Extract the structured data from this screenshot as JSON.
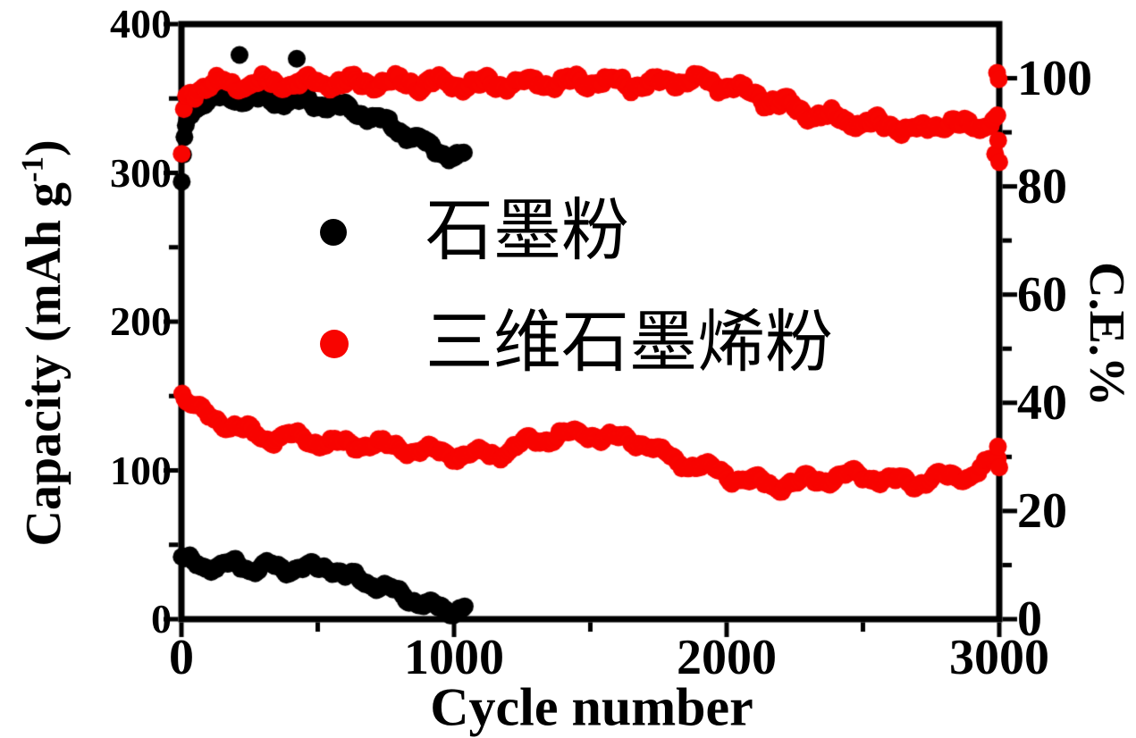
{
  "chart_data": {
    "type": "scatter",
    "title": "",
    "xlabel": "Cycle number",
    "ylabel_left_prefix": "Capacity (mAh g",
    "ylabel_left_sup": "-1",
    "ylabel_left_suffix": ")",
    "ylabel_right": "C.E.%",
    "grid": false,
    "legend_position": "upper-middle-left",
    "x_axis": {
      "range": [
        0,
        3000
      ],
      "major_ticks": [
        0,
        1000,
        2000,
        3000
      ],
      "minor_ticks": [
        500,
        1500,
        2500
      ]
    },
    "y_left": {
      "range": [
        0,
        400
      ],
      "major_ticks": [
        0,
        100,
        200,
        300,
        400
      ],
      "minor_ticks": [
        50,
        150,
        250,
        350
      ]
    },
    "y_right": {
      "range": [
        0,
        110
      ],
      "major_ticks": [
        0,
        20,
        40,
        60,
        80,
        100
      ],
      "minor_ticks": [
        10,
        30,
        50,
        70,
        90
      ]
    },
    "colors": {
      "graphite": "#000000",
      "graphene": "#f80400",
      "axis": "#000000",
      "background": "#ffffff"
    },
    "legend": [
      {
        "label": "石墨粉",
        "color": "#000000"
      },
      {
        "label": "三维石墨烯粉",
        "color": "#f80400"
      }
    ],
    "series": [
      {
        "name": "graphite-powder-capacity",
        "legend": "石墨粉",
        "color": "#000000",
        "axis": "left",
        "step": 6,
        "radius": 10,
        "wiggle": [
          2.6,
          150,
          1.2,
          55
        ],
        "jitter": 1.0,
        "keypoints": [
          [
            1,
            41
          ],
          [
            50,
            37
          ],
          [
            120,
            35
          ],
          [
            200,
            37
          ],
          [
            260,
            34
          ],
          [
            320,
            36
          ],
          [
            380,
            33
          ],
          [
            440,
            35
          ],
          [
            500,
            34
          ],
          [
            550,
            35
          ],
          [
            600,
            29
          ],
          [
            650,
            27
          ],
          [
            700,
            24
          ],
          [
            750,
            21
          ],
          [
            800,
            17
          ],
          [
            850,
            13
          ],
          [
            900,
            10
          ],
          [
            950,
            7
          ],
          [
            1000,
            6
          ],
          [
            1040,
            9
          ]
        ],
        "extras": []
      },
      {
        "name": "graphite-powder-coulombic-efficiency",
        "legend": "石墨粉",
        "color": "#000000",
        "axis": "right",
        "step": 5,
        "radius": 10,
        "wiggle": [
          0.7,
          150,
          0.35,
          50
        ],
        "jitter": 0.4,
        "keypoints": [
          [
            1,
            80
          ],
          [
            3,
            82
          ],
          [
            6,
            85
          ],
          [
            10,
            88
          ],
          [
            15,
            90.5
          ],
          [
            25,
            93
          ],
          [
            40,
            94.5
          ],
          [
            80,
            95.8
          ],
          [
            150,
            96.4
          ],
          [
            250,
            96.2
          ],
          [
            350,
            96
          ],
          [
            450,
            95.7
          ],
          [
            550,
            95
          ],
          [
            620,
            94.2
          ],
          [
            700,
            92.8
          ],
          [
            760,
            91.5
          ],
          [
            820,
            89.8
          ],
          [
            880,
            88.2
          ],
          [
            940,
            86.6
          ],
          [
            1000,
            85.3
          ],
          [
            1040,
            85.6
          ]
        ],
        "extras": [
          [
            213,
            104.3
          ],
          [
            423,
            103.6
          ]
        ]
      },
      {
        "name": "3d-graphene-powder-capacity",
        "legend": "三维石墨烯粉",
        "color": "#f80400",
        "axis": "left",
        "step": 8,
        "radius": 10,
        "wiggle": [
          3.0,
          170,
          1.4,
          60
        ],
        "jitter": 1.2,
        "keypoints": [
          [
            3,
            152
          ],
          [
            20,
            146
          ],
          [
            60,
            140
          ],
          [
            100,
            136
          ],
          [
            200,
            129
          ],
          [
            300,
            122
          ],
          [
            400,
            123
          ],
          [
            500,
            119
          ],
          [
            600,
            117
          ],
          [
            700,
            118
          ],
          [
            800,
            115
          ],
          [
            900,
            113
          ],
          [
            1000,
            111
          ],
          [
            1100,
            110
          ],
          [
            1170,
            112
          ],
          [
            1300,
            120
          ],
          [
            1400,
            125
          ],
          [
            1500,
            124
          ],
          [
            1600,
            121
          ],
          [
            1700,
            119
          ],
          [
            1800,
            107
          ],
          [
            1900,
            103
          ],
          [
            2000,
            97
          ],
          [
            2100,
            92
          ],
          [
            2200,
            90
          ],
          [
            2300,
            93
          ],
          [
            2400,
            95
          ],
          [
            2500,
            97
          ],
          [
            2600,
            93
          ],
          [
            2700,
            92
          ],
          [
            2800,
            95
          ],
          [
            2900,
            97
          ],
          [
            3000,
            108
          ]
        ],
        "extras": [
          [
            2995,
            116
          ],
          [
            3000,
            102
          ]
        ]
      },
      {
        "name": "3d-graphene-powder-coulombic-efficiency",
        "legend": "三维石墨烯粉",
        "color": "#f80400",
        "axis": "right",
        "step": 8,
        "radius": 10,
        "wiggle": [
          0.9,
          160,
          0.45,
          55
        ],
        "jitter": 0.5,
        "keypoints": [
          [
            1,
            85.5
          ],
          [
            10,
            95
          ],
          [
            30,
            97.5
          ],
          [
            100,
            98.8
          ],
          [
            300,
            99
          ],
          [
            500,
            99.2
          ],
          [
            700,
            99
          ],
          [
            900,
            99.2
          ],
          [
            1100,
            98.8
          ],
          [
            1300,
            99.3
          ],
          [
            1500,
            99.5
          ],
          [
            1700,
            98.8
          ],
          [
            1850,
            99.8
          ],
          [
            2000,
            98.6
          ],
          [
            2100,
            96.8
          ],
          [
            2200,
            95.3
          ],
          [
            2300,
            93.6
          ],
          [
            2400,
            92.6
          ],
          [
            2500,
            91.8
          ],
          [
            2600,
            91.3
          ],
          [
            2700,
            90.2
          ],
          [
            2800,
            92
          ],
          [
            2900,
            90.8
          ],
          [
            3000,
            92.5
          ]
        ],
        "extras": [
          [
            2985,
            86
          ],
          [
            2992,
            101
          ],
          [
            2998,
            99.8
          ],
          [
            3000,
            84.5
          ],
          [
            2996,
            88.5
          ]
        ]
      }
    ]
  }
}
